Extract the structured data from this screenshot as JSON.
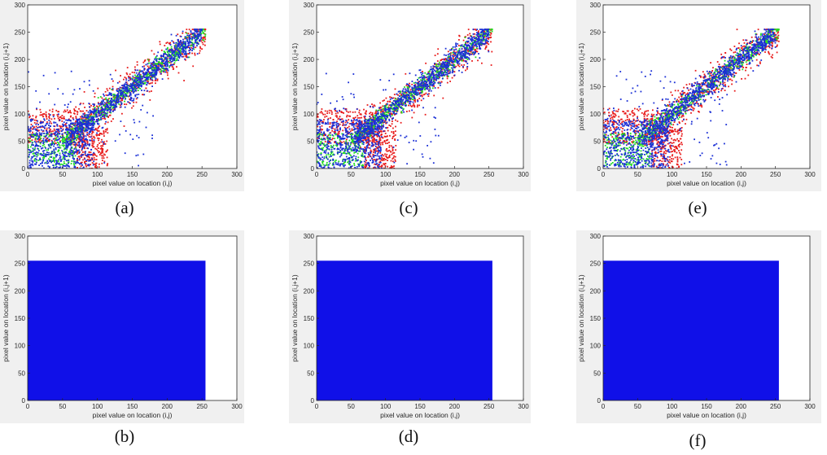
{
  "figure": {
    "panels": [
      {
        "id": "a",
        "caption": "(a)"
      },
      {
        "id": "c",
        "caption": "(c)"
      },
      {
        "id": "e",
        "caption": "(e)"
      },
      {
        "id": "b",
        "caption": "(b)"
      },
      {
        "id": "d",
        "caption": "(d)"
      },
      {
        "id": "f",
        "caption": "(f)"
      }
    ]
  },
  "chart_data": [
    {
      "panel": "a",
      "type": "scatter",
      "xlabel": "pixel value on location (i,j)",
      "ylabel": "pixel value on location (i,j+1)",
      "xlim": [
        0,
        300
      ],
      "ylim": [
        0,
        300
      ],
      "xticks": [
        0,
        50,
        100,
        150,
        200,
        250,
        300
      ],
      "yticks": [
        0,
        50,
        100,
        150,
        200,
        250,
        300
      ],
      "colors": [
        "#e81b1b",
        "#22dd22",
        "#1a2fd6"
      ],
      "pattern": "correlated-diagonal"
    },
    {
      "panel": "c",
      "type": "scatter",
      "xlabel": "pixel value on location (i,j)",
      "ylabel": "pixel value on location (i,j+1)",
      "xlim": [
        0,
        300
      ],
      "ylim": [
        0,
        300
      ],
      "xticks": [
        0,
        50,
        100,
        150,
        200,
        250,
        300
      ],
      "yticks": [
        0,
        50,
        100,
        150,
        200,
        250,
        300
      ],
      "colors": [
        "#e81b1b",
        "#22dd22",
        "#1a2fd6"
      ],
      "pattern": "correlated-diagonal"
    },
    {
      "panel": "e",
      "type": "scatter",
      "xlabel": "pixel value on location (i,j)",
      "ylabel": "pixel value on location (i,j+1)",
      "xlim": [
        0,
        300
      ],
      "ylim": [
        0,
        300
      ],
      "xticks": [
        0,
        50,
        100,
        150,
        200,
        250,
        300
      ],
      "yticks": [
        0,
        50,
        100,
        150,
        200,
        250,
        300
      ],
      "colors": [
        "#e81b1b",
        "#22dd22",
        "#1a2fd6"
      ],
      "pattern": "correlated-diagonal"
    },
    {
      "panel": "b",
      "type": "scatter",
      "xlabel": "pixel value on location (i,j)",
      "ylabel": "pixel value on location (i,j+1)",
      "xlim": [
        0,
        300
      ],
      "ylim": [
        0,
        300
      ],
      "xticks": [
        0,
        50,
        100,
        150,
        200,
        250,
        300
      ],
      "yticks": [
        0,
        50,
        100,
        150,
        200,
        250,
        300
      ],
      "colors": [
        "#1010e8"
      ],
      "pattern": "uniform-fill",
      "fill_range": [
        0,
        255
      ]
    },
    {
      "panel": "d",
      "type": "scatter",
      "xlabel": "pixel value on location (i,j)",
      "ylabel": "pixel value on location (i,j+1)",
      "xlim": [
        0,
        300
      ],
      "ylim": [
        0,
        300
      ],
      "xticks": [
        0,
        50,
        100,
        150,
        200,
        250,
        300
      ],
      "yticks": [
        0,
        50,
        100,
        150,
        200,
        250,
        300
      ],
      "colors": [
        "#1010e8"
      ],
      "pattern": "uniform-fill",
      "fill_range": [
        0,
        255
      ]
    },
    {
      "panel": "f",
      "type": "scatter",
      "xlabel": "pixel value on location (i,j)",
      "ylabel": "pixel value on location (i,j+1)",
      "xlim": [
        0,
        300
      ],
      "ylim": [
        0,
        300
      ],
      "xticks": [
        0,
        50,
        100,
        150,
        200,
        250,
        300
      ],
      "yticks": [
        0,
        50,
        100,
        150,
        200,
        250,
        300
      ],
      "colors": [
        "#1010e8"
      ],
      "pattern": "uniform-fill",
      "fill_range": [
        0,
        255
      ]
    }
  ]
}
